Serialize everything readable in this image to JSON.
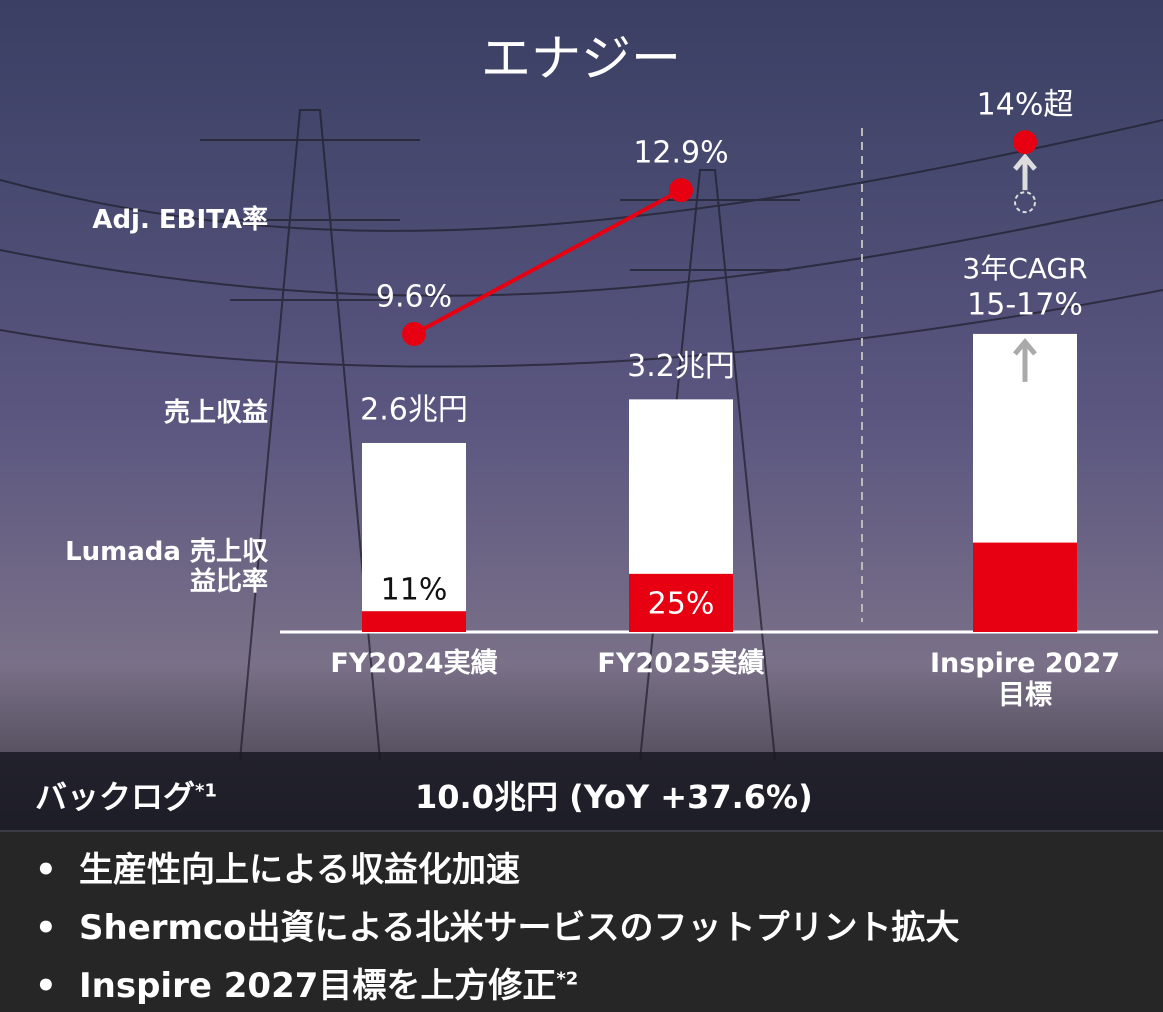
{
  "chart_data": {
    "type": "bar",
    "title": "エナジー",
    "categories": [
      "FY2024実績",
      "FY2025実績",
      "Inspire 2027 目標"
    ],
    "series": [
      {
        "name": "売上収益",
        "color": "#ffffff",
        "values": [
          2.6,
          3.2,
          4.1
        ],
        "value_labels": [
          "2.6兆円",
          "3.2兆円",
          null
        ]
      },
      {
        "name": "Lumada 売上収益比率",
        "color": "#e60012",
        "values": [
          11,
          25,
          30
        ],
        "value_labels": [
          "11%",
          "25%",
          null
        ]
      },
      {
        "name": "Adj. EBITA率",
        "color": "#e60012",
        "values": [
          9.6,
          12.9,
          14
        ],
        "value_labels": [
          "9.6%",
          "12.9%",
          "14%超"
        ]
      }
    ],
    "growth_label": [
      "3年CAGR",
      "15-17%"
    ]
  },
  "backlog": {
    "label": "バックログ",
    "note": "*1",
    "value": "10.0兆円 (YoY +37.6%)"
  },
  "bullets": [
    {
      "text": "生産性向上による収益化加速"
    },
    {
      "text": "Shermco出資による北米サービスのフットプリント拡大"
    },
    {
      "text": "Inspire 2027目標を上方修正",
      "note": "*2"
    }
  ]
}
